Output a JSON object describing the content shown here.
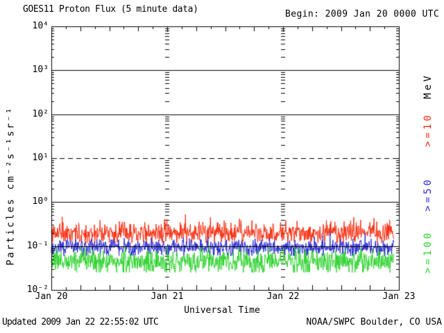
{
  "header": {
    "title": "GOES11 Proton Flux (5 minute data)",
    "begin_label": "Begin: 2009 Jan 20 0000 UTC"
  },
  "footer": {
    "updated": "Updated 2009 Jan 22 22:55:02 UTC",
    "source": "NOAA/SWPC Boulder, CO USA"
  },
  "chart_data": {
    "type": "line",
    "title": "GOES11 Proton Flux (5 minute data)",
    "xlabel": "Universal Time",
    "ylabel": "Particles cm⁻²s⁻¹sr⁻¹",
    "yscale": "log",
    "ylim": [
      0.01,
      10000
    ],
    "y_tick_labels": [
      "10⁴",
      "10³",
      "10²",
      "10¹",
      "10⁰",
      "10⁻¹",
      "10⁻²"
    ],
    "y_tick_exponents": [
      4,
      3,
      2,
      1,
      0,
      -1,
      -2
    ],
    "x_tick_labels": [
      "Jan 20",
      "Jan 21",
      "Jan 22",
      "Jan 23"
    ],
    "x_range_days": 3,
    "x_minor_tick_hours": 3,
    "grid": {
      "solid_lines_at": [
        1000,
        100,
        1,
        0.1
      ],
      "dashed_line_at": 10,
      "day_boundary_minor_dash_columns": true
    },
    "legend": {
      "unit_label": "MeV",
      "unit_color": "#000000",
      "position": "right-rotated",
      "entries": [
        {
          "label": ">=10",
          "color": "#f92b0e"
        },
        {
          "label": ">=50",
          "color": "#2b2bd5"
        },
        {
          "label": ">=100",
          "color": "#2dd32d"
        }
      ]
    },
    "data_end_fraction_of_axis": 0.985,
    "samples_per_series": 851,
    "series": [
      {
        "name": ">=10 MeV",
        "color": "#f92b0e",
        "approx_mean_flux": 0.2,
        "approx_min_flux": 0.12,
        "approx_max_flux": 0.52,
        "gen": {
          "seed": 11,
          "base_log10": -0.7,
          "sigma_log10": 0.12,
          "clamp_log10": [
            -0.93,
            -0.28
          ],
          "spike_prob": 0.02,
          "spike_mag": 0.3
        }
      },
      {
        "name": ">=50 MeV",
        "color": "#2b2bd5",
        "approx_mean_flux": 0.093,
        "approx_min_flux": 0.06,
        "approx_max_flux": 0.26,
        "gen": {
          "seed": 22,
          "base_log10": -1.03,
          "sigma_log10": 0.095,
          "clamp_log10": [
            -1.22,
            -0.58
          ],
          "spike_prob": 0.015,
          "spike_mag": 0.25
        }
      },
      {
        "name": ">=100 MeV",
        "color": "#2dd32d",
        "approx_mean_flux": 0.045,
        "approx_min_flux": 0.025,
        "approx_max_flux": 0.1,
        "gen": {
          "seed": 33,
          "base_log10": -1.35,
          "sigma_log10": 0.13,
          "clamp_log10": [
            -1.6,
            -0.99
          ],
          "spike_prob": 0.01,
          "spike_mag": 0.2
        }
      }
    ]
  },
  "plot": {
    "axis_color": "#000000",
    "background": "#ffffff"
  }
}
